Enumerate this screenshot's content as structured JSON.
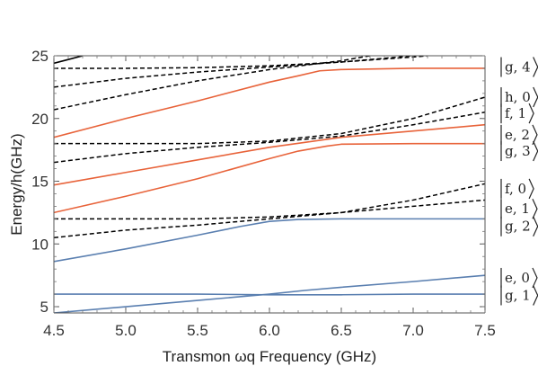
{
  "chart_data": {
    "type": "line",
    "xlabel": "Transmon ωq Frequency (GHz)",
    "ylabel": "Energy/h(GHz)",
    "xlim": [
      4.5,
      7.5
    ],
    "ylim": [
      4.5,
      25
    ],
    "x_ticks": [
      "4.5",
      "5.0",
      "5.5",
      "6.0",
      "6.5",
      "7.0",
      "7.5"
    ],
    "y_ticks": [
      "5",
      "10",
      "15",
      "20",
      "25"
    ],
    "grid": false,
    "legend": "none",
    "colors": {
      "blue": "#5a7fb0",
      "orange": "#e8633a",
      "black": "#000000"
    },
    "series": [
      {
        "style": "solid",
        "color": "blue",
        "x": [
          4.5,
          5.0,
          5.5,
          6.0,
          6.25,
          6.5,
          7.0,
          7.5
        ],
        "y": [
          4.5,
          5.0,
          5.5,
          6.0,
          6.3,
          6.55,
          7.0,
          7.5
        ]
      },
      {
        "style": "solid",
        "color": "blue",
        "x": [
          4.5,
          5.0,
          5.5,
          6.0,
          6.5,
          7.0,
          7.5
        ],
        "y": [
          6.0,
          6.0,
          6.0,
          5.95,
          5.95,
          6.0,
          6.0
        ]
      },
      {
        "style": "solid",
        "color": "blue",
        "x": [
          4.5,
          5.0,
          5.5,
          5.8,
          6.0,
          6.2,
          6.5,
          7.0,
          7.5
        ],
        "y": [
          8.6,
          9.6,
          10.7,
          11.4,
          11.8,
          11.95,
          12.0,
          12.0,
          12.0
        ]
      },
      {
        "style": "dashed",
        "color": "black",
        "x": [
          4.5,
          5.0,
          5.5,
          6.0,
          6.5,
          7.0,
          7.5
        ],
        "y": [
          10.5,
          11.1,
          11.5,
          12.0,
          12.5,
          13.0,
          13.5
        ]
      },
      {
        "style": "dashed",
        "color": "black",
        "x": [
          4.5,
          5.0,
          5.5,
          6.0,
          6.5,
          7.0,
          7.5
        ],
        "y": [
          12.0,
          12.0,
          12.0,
          12.15,
          12.5,
          13.5,
          14.8
        ]
      },
      {
        "style": "solid",
        "color": "orange",
        "x": [
          4.5,
          5.0,
          5.5,
          6.0,
          6.2,
          6.4,
          6.5,
          7.0,
          7.5
        ],
        "y": [
          12.5,
          13.8,
          15.2,
          16.8,
          17.4,
          17.8,
          17.95,
          18.0,
          18.0
        ]
      },
      {
        "style": "solid",
        "color": "orange",
        "x": [
          4.5,
          5.0,
          5.5,
          6.0,
          6.5,
          7.0,
          7.5
        ],
        "y": [
          14.7,
          15.7,
          16.7,
          17.7,
          18.5,
          19.0,
          19.5
        ]
      },
      {
        "style": "dashed",
        "color": "black",
        "x": [
          4.5,
          5.0,
          5.5,
          6.0,
          6.5,
          7.0,
          7.5
        ],
        "y": [
          16.5,
          17.2,
          17.7,
          18.1,
          18.6,
          19.5,
          20.5
        ]
      },
      {
        "style": "dashed",
        "color": "black",
        "x": [
          4.5,
          5.0,
          5.5,
          6.0,
          6.5,
          7.0,
          7.5
        ],
        "y": [
          18.0,
          18.0,
          18.0,
          18.2,
          18.8,
          20.0,
          21.7
        ]
      },
      {
        "style": "solid",
        "color": "orange",
        "x": [
          4.5,
          5.0,
          5.5,
          6.0,
          6.2,
          6.35,
          6.5,
          7.0,
          7.5
        ],
        "y": [
          18.5,
          20.0,
          21.4,
          22.9,
          23.4,
          23.8,
          23.9,
          24.0,
          24.0
        ]
      },
      {
        "style": "dashed",
        "color": "black",
        "x": [
          4.5,
          5.0,
          5.5,
          6.0,
          6.5,
          6.7
        ],
        "y": [
          20.7,
          21.9,
          23.0,
          23.9,
          24.6,
          25.0
        ]
      },
      {
        "style": "dashed",
        "color": "black",
        "x": [
          4.5,
          5.0,
          5.5,
          6.0,
          6.5,
          7.0,
          7.1
        ],
        "y": [
          22.5,
          23.2,
          23.7,
          24.1,
          24.5,
          24.9,
          25.0
        ]
      },
      {
        "style": "dashed",
        "color": "black",
        "x": [
          4.5,
          5.0,
          5.5,
          6.0,
          6.5,
          7.0
        ],
        "y": [
          24.0,
          24.0,
          24.05,
          24.2,
          24.5,
          25.0
        ]
      },
      {
        "style": "solid",
        "color": "black",
        "x": [
          4.5,
          4.6,
          4.7
        ],
        "y": [
          24.4,
          24.7,
          25.0
        ]
      }
    ],
    "state_labels": [
      {
        "state": "g, 4",
        "y": 24.1
      },
      {
        "state": "h, 0",
        "y": 21.7
      },
      {
        "state": "f, 1",
        "y": 20.4
      },
      {
        "state": "e, 2",
        "y": 18.7
      },
      {
        "state": "g, 3",
        "y": 17.4
      },
      {
        "state": "f, 0",
        "y": 14.4
      },
      {
        "state": "e, 1",
        "y": 12.8
      },
      {
        "state": "g, 2",
        "y": 11.4
      },
      {
        "state": "e, 0",
        "y": 7.3
      },
      {
        "state": "g, 1",
        "y": 5.9
      }
    ]
  }
}
